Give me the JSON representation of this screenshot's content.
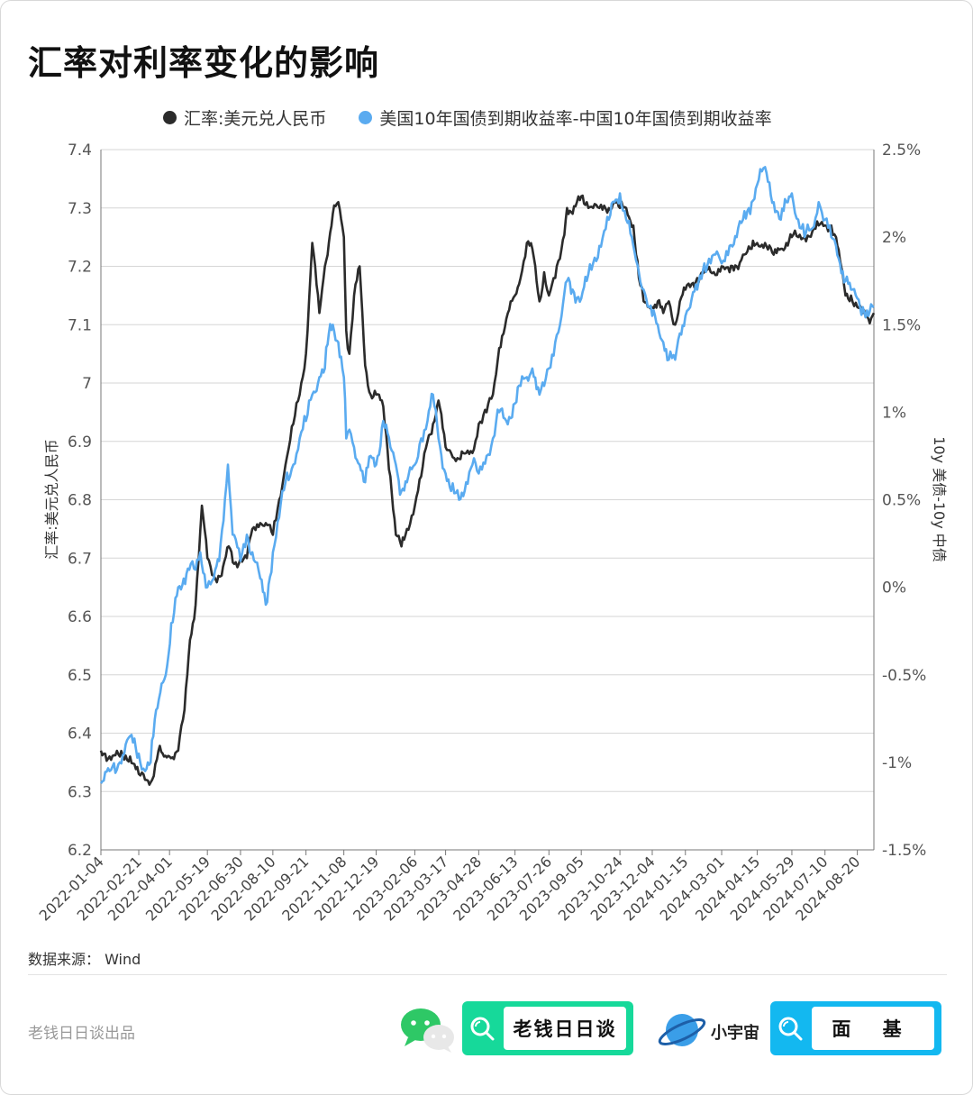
{
  "title": "汇率对利率变化的影响",
  "legend": [
    {
      "name": "汇率:美元兑人民币",
      "color": "#2b2b2b"
    },
    {
      "name": "美国10年国债到期收益率-中国10年国债到期收益率",
      "color": "#5aabf0"
    }
  ],
  "source": "数据来源： Wind",
  "footer": {
    "producer": "老钱日日谈出品",
    "brand1": "老钱日日谈",
    "brand2_logo": "小宇宙",
    "brand2": "面 基"
  },
  "chart_data": {
    "type": "line",
    "xlabel": "",
    "ylabel_left": "汇率:美元兑人民币",
    "ylabel_right": "10y 美债-10y 中债",
    "ylim_left": [
      6.2,
      7.4
    ],
    "ylim_right": [
      -1.5,
      2.5
    ],
    "yticks_left": [
      "6.2",
      "6.3",
      "6.4",
      "6.5",
      "6.6",
      "6.7",
      "6.8",
      "6.9",
      "7",
      "7.1",
      "7.2",
      "7.3",
      "7.4"
    ],
    "yticks_right": [
      "-1.5%",
      "-1%",
      "-0.5%",
      "0%",
      "0.5%",
      "1%",
      "1.5%",
      "2%",
      "2.5%"
    ],
    "xticks": [
      "2022-01-04",
      "2022-02-21",
      "2022-04-01",
      "2022-05-19",
      "2022-06-30",
      "2022-08-10",
      "2022-09-21",
      "2022-11-08",
      "2022-12-19",
      "2023-02-06",
      "2023-03-17",
      "2023-04-28",
      "2023-06-13",
      "2023-07-26",
      "2023-09-05",
      "2023-10-24",
      "2023-12-04",
      "2024-01-15",
      "2024-03-01",
      "2024-04-15",
      "2024-05-29",
      "2024-07-10",
      "2024-08-20"
    ],
    "grid": true,
    "legend_position": "top",
    "colors": {
      "left_series": "#2b2b2b",
      "right_series": "#5aabf0"
    },
    "series": [
      {
        "name": "汇率:美元兑人民币",
        "axis": "left",
        "points": [
          [
            "2022-01-04",
            6.37
          ],
          [
            "2022-01-15",
            6.36
          ],
          [
            "2022-01-28",
            6.36
          ],
          [
            "2022-02-10",
            6.36
          ],
          [
            "2022-02-21",
            6.33
          ],
          [
            "2022-03-01",
            6.32
          ],
          [
            "2022-03-10",
            6.32
          ],
          [
            "2022-03-18",
            6.37
          ],
          [
            "2022-03-25",
            6.36
          ],
          [
            "2022-04-01",
            6.36
          ],
          [
            "2022-04-12",
            6.37
          ],
          [
            "2022-04-20",
            6.44
          ],
          [
            "2022-04-27",
            6.56
          ],
          [
            "2022-05-04",
            6.62
          ],
          [
            "2022-05-12",
            6.79
          ],
          [
            "2022-05-19",
            6.7
          ],
          [
            "2022-05-27",
            6.67
          ],
          [
            "2022-06-06",
            6.67
          ],
          [
            "2022-06-15",
            6.72
          ],
          [
            "2022-06-22",
            6.69
          ],
          [
            "2022-06-30",
            6.7
          ],
          [
            "2022-07-08",
            6.7
          ],
          [
            "2022-07-15",
            6.75
          ],
          [
            "2022-07-25",
            6.76
          ],
          [
            "2022-08-01",
            6.76
          ],
          [
            "2022-08-10",
            6.74
          ],
          [
            "2022-08-18",
            6.8
          ],
          [
            "2022-08-26",
            6.86
          ],
          [
            "2022-09-05",
            6.93
          ],
          [
            "2022-09-13",
            6.98
          ],
          [
            "2022-09-21",
            7.05
          ],
          [
            "2022-09-29",
            7.24
          ],
          [
            "2022-10-08",
            7.12
          ],
          [
            "2022-10-15",
            7.2
          ],
          [
            "2022-10-20",
            7.24
          ],
          [
            "2022-10-25",
            7.29
          ],
          [
            "2022-11-01",
            7.31
          ],
          [
            "2022-11-08",
            7.25
          ],
          [
            "2022-11-11",
            7.09
          ],
          [
            "2022-11-15",
            7.05
          ],
          [
            "2022-11-21",
            7.15
          ],
          [
            "2022-11-28",
            7.2
          ],
          [
            "2022-12-05",
            7.03
          ],
          [
            "2022-12-12",
            6.98
          ],
          [
            "2022-12-19",
            6.98
          ],
          [
            "2022-12-28",
            6.96
          ],
          [
            "2023-01-06",
            6.84
          ],
          [
            "2023-01-13",
            6.74
          ],
          [
            "2023-01-20",
            6.72
          ],
          [
            "2023-01-27",
            6.75
          ],
          [
            "2023-02-06",
            6.79
          ],
          [
            "2023-02-14",
            6.84
          ],
          [
            "2023-02-22",
            6.9
          ],
          [
            "2023-03-01",
            6.93
          ],
          [
            "2023-03-08",
            6.97
          ],
          [
            "2023-03-17",
            6.89
          ],
          [
            "2023-03-24",
            6.88
          ],
          [
            "2023-04-03",
            6.87
          ],
          [
            "2023-04-12",
            6.88
          ],
          [
            "2023-04-20",
            6.88
          ],
          [
            "2023-04-28",
            6.93
          ],
          [
            "2023-05-08",
            6.95
          ],
          [
            "2023-05-16",
            6.98
          ],
          [
            "2023-05-24",
            7.06
          ],
          [
            "2023-06-02",
            7.11
          ],
          [
            "2023-06-13",
            7.15
          ],
          [
            "2023-06-20",
            7.18
          ],
          [
            "2023-06-28",
            7.24
          ],
          [
            "2023-07-05",
            7.23
          ],
          [
            "2023-07-14",
            7.14
          ],
          [
            "2023-07-20",
            7.19
          ],
          [
            "2023-07-26",
            7.15
          ],
          [
            "2023-08-03",
            7.18
          ],
          [
            "2023-08-11",
            7.23
          ],
          [
            "2023-08-18",
            7.3
          ],
          [
            "2023-08-25",
            7.29
          ],
          [
            "2023-09-05",
            7.32
          ],
          [
            "2023-09-12",
            7.31
          ],
          [
            "2023-09-20",
            7.3
          ],
          [
            "2023-09-28",
            7.3
          ],
          [
            "2023-10-10",
            7.3
          ],
          [
            "2023-10-17",
            7.31
          ],
          [
            "2023-10-24",
            7.3
          ],
          [
            "2023-11-01",
            7.3
          ],
          [
            "2023-11-10",
            7.27
          ],
          [
            "2023-11-17",
            7.18
          ],
          [
            "2023-11-23",
            7.14
          ],
          [
            "2023-11-30",
            7.13
          ],
          [
            "2023-12-04",
            7.13
          ],
          [
            "2023-12-11",
            7.14
          ],
          [
            "2023-12-18",
            7.12
          ],
          [
            "2023-12-25",
            7.14
          ],
          [
            "2024-01-02",
            7.1
          ],
          [
            "2024-01-08",
            7.14
          ],
          [
            "2024-01-15",
            7.16
          ],
          [
            "2024-01-23",
            7.17
          ],
          [
            "2024-01-30",
            7.18
          ],
          [
            "2024-02-08",
            7.19
          ],
          [
            "2024-02-20",
            7.19
          ],
          [
            "2024-03-01",
            7.2
          ],
          [
            "2024-03-11",
            7.19
          ],
          [
            "2024-03-20",
            7.2
          ],
          [
            "2024-03-28",
            7.22
          ],
          [
            "2024-04-08",
            7.23
          ],
          [
            "2024-04-15",
            7.24
          ],
          [
            "2024-04-25",
            7.24
          ],
          [
            "2024-05-06",
            7.22
          ],
          [
            "2024-05-15",
            7.23
          ],
          [
            "2024-05-22",
            7.24
          ],
          [
            "2024-05-29",
            7.25
          ],
          [
            "2024-06-06",
            7.25
          ],
          [
            "2024-06-14",
            7.25
          ],
          [
            "2024-06-24",
            7.26
          ],
          [
            "2024-07-02",
            7.27
          ],
          [
            "2024-07-10",
            7.27
          ],
          [
            "2024-07-18",
            7.27
          ],
          [
            "2024-07-24",
            7.25
          ],
          [
            "2024-07-29",
            7.21
          ],
          [
            "2024-08-05",
            7.15
          ],
          [
            "2024-08-12",
            7.15
          ],
          [
            "2024-08-20",
            7.13
          ],
          [
            "2024-08-27",
            7.12
          ],
          [
            "2024-09-03",
            7.11
          ],
          [
            "2024-09-10",
            7.12
          ]
        ]
      },
      {
        "name": "美国10年国债到期收益率-中国10年国债到期收益率",
        "axis": "right",
        "points": [
          [
            "2022-01-04",
            -1.12
          ],
          [
            "2022-01-15",
            -1.05
          ],
          [
            "2022-01-28",
            -1.0
          ],
          [
            "2022-02-10",
            -0.85
          ],
          [
            "2022-02-21",
            -0.95
          ],
          [
            "2022-03-01",
            -1.05
          ],
          [
            "2022-03-08",
            -1.0
          ],
          [
            "2022-03-15",
            -0.7
          ],
          [
            "2022-03-22",
            -0.55
          ],
          [
            "2022-03-29",
            -0.45
          ],
          [
            "2022-04-05",
            -0.2
          ],
          [
            "2022-04-12",
            0.0
          ],
          [
            "2022-04-19",
            0.05
          ],
          [
            "2022-04-26",
            0.1
          ],
          [
            "2022-05-04",
            0.1
          ],
          [
            "2022-05-10",
            0.2
          ],
          [
            "2022-05-19",
            0.0
          ],
          [
            "2022-05-27",
            0.05
          ],
          [
            "2022-06-03",
            0.15
          ],
          [
            "2022-06-14",
            0.7
          ],
          [
            "2022-06-20",
            0.3
          ],
          [
            "2022-06-30",
            0.15
          ],
          [
            "2022-07-08",
            0.3
          ],
          [
            "2022-07-15",
            0.2
          ],
          [
            "2022-07-25",
            0.05
          ],
          [
            "2022-08-01",
            -0.1
          ],
          [
            "2022-08-10",
            0.2
          ],
          [
            "2022-08-18",
            0.4
          ],
          [
            "2022-08-26",
            0.6
          ],
          [
            "2022-09-05",
            0.7
          ],
          [
            "2022-09-13",
            0.85
          ],
          [
            "2022-09-21",
            0.95
          ],
          [
            "2022-09-29",
            1.1
          ],
          [
            "2022-10-08",
            1.2
          ],
          [
            "2022-10-15",
            1.25
          ],
          [
            "2022-10-20",
            1.45
          ],
          [
            "2022-10-25",
            1.5
          ],
          [
            "2022-11-01",
            1.4
          ],
          [
            "2022-11-08",
            1.2
          ],
          [
            "2022-11-11",
            0.85
          ],
          [
            "2022-11-15",
            0.9
          ],
          [
            "2022-11-21",
            0.8
          ],
          [
            "2022-11-28",
            0.7
          ],
          [
            "2022-12-05",
            0.6
          ],
          [
            "2022-12-12",
            0.75
          ],
          [
            "2022-12-19",
            0.7
          ],
          [
            "2022-12-28",
            0.95
          ],
          [
            "2023-01-06",
            0.8
          ],
          [
            "2023-01-13",
            0.7
          ],
          [
            "2023-01-20",
            0.55
          ],
          [
            "2023-01-27",
            0.6
          ],
          [
            "2023-02-06",
            0.7
          ],
          [
            "2023-02-14",
            0.85
          ],
          [
            "2023-02-22",
            0.95
          ],
          [
            "2023-03-01",
            1.1
          ],
          [
            "2023-03-08",
            0.85
          ],
          [
            "2023-03-17",
            0.65
          ],
          [
            "2023-03-24",
            0.55
          ],
          [
            "2023-04-03",
            0.5
          ],
          [
            "2023-04-12",
            0.6
          ],
          [
            "2023-04-20",
            0.7
          ],
          [
            "2023-04-28",
            0.65
          ],
          [
            "2023-05-08",
            0.75
          ],
          [
            "2023-05-16",
            0.85
          ],
          [
            "2023-05-24",
            1.0
          ],
          [
            "2023-06-02",
            0.95
          ],
          [
            "2023-06-13",
            1.05
          ],
          [
            "2023-06-20",
            1.15
          ],
          [
            "2023-06-28",
            1.2
          ],
          [
            "2023-07-05",
            1.25
          ],
          [
            "2023-07-14",
            1.1
          ],
          [
            "2023-07-20",
            1.15
          ],
          [
            "2023-07-26",
            1.25
          ],
          [
            "2023-08-03",
            1.4
          ],
          [
            "2023-08-11",
            1.55
          ],
          [
            "2023-08-18",
            1.75
          ],
          [
            "2023-08-25",
            1.7
          ],
          [
            "2023-09-05",
            1.65
          ],
          [
            "2023-09-12",
            1.75
          ],
          [
            "2023-09-20",
            1.85
          ],
          [
            "2023-09-28",
            1.95
          ],
          [
            "2023-10-10",
            2.1
          ],
          [
            "2023-10-17",
            2.2
          ],
          [
            "2023-10-24",
            2.25
          ],
          [
            "2023-11-01",
            2.1
          ],
          [
            "2023-11-10",
            1.95
          ],
          [
            "2023-11-17",
            1.8
          ],
          [
            "2023-11-23",
            1.7
          ],
          [
            "2023-11-30",
            1.6
          ],
          [
            "2023-12-04",
            1.55
          ],
          [
            "2023-12-11",
            1.5
          ],
          [
            "2023-12-18",
            1.4
          ],
          [
            "2023-12-25",
            1.3
          ],
          [
            "2024-01-02",
            1.3
          ],
          [
            "2024-01-08",
            1.45
          ],
          [
            "2024-01-15",
            1.55
          ],
          [
            "2024-01-23",
            1.65
          ],
          [
            "2024-01-30",
            1.7
          ],
          [
            "2024-02-08",
            1.85
          ],
          [
            "2024-02-20",
            1.9
          ],
          [
            "2024-03-01",
            1.85
          ],
          [
            "2024-03-11",
            1.95
          ],
          [
            "2024-03-20",
            2.0
          ],
          [
            "2024-03-28",
            2.1
          ],
          [
            "2024-04-08",
            2.2
          ],
          [
            "2024-04-15",
            2.3
          ],
          [
            "2024-04-25",
            2.4
          ],
          [
            "2024-05-06",
            2.2
          ],
          [
            "2024-05-15",
            2.1
          ],
          [
            "2024-05-22",
            2.2
          ],
          [
            "2024-05-29",
            2.25
          ],
          [
            "2024-06-06",
            2.1
          ],
          [
            "2024-06-14",
            2.0
          ],
          [
            "2024-06-24",
            2.05
          ],
          [
            "2024-07-02",
            2.2
          ],
          [
            "2024-07-10",
            2.1
          ],
          [
            "2024-07-18",
            2.0
          ],
          [
            "2024-07-24",
            1.95
          ],
          [
            "2024-07-29",
            1.85
          ],
          [
            "2024-08-05",
            1.75
          ],
          [
            "2024-08-12",
            1.7
          ],
          [
            "2024-08-20",
            1.65
          ],
          [
            "2024-08-27",
            1.6
          ],
          [
            "2024-09-03",
            1.55
          ],
          [
            "2024-09-10",
            1.6
          ]
        ]
      }
    ]
  }
}
